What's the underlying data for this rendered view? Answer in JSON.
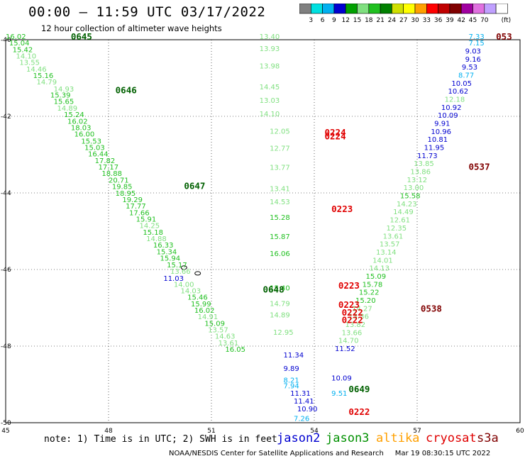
{
  "header": {
    "title": "00:00 – 11:59 UTC 03/17/2022",
    "subtitle": "12 hour collection of altimeter wave heights"
  },
  "legend": {
    "unit": "(ft)",
    "colors": [
      "#808080",
      "#00e0e0",
      "#00b0f0",
      "#0000d0",
      "#00a000",
      "#80e080",
      "#20c020",
      "#008000",
      "#d0e000",
      "#ffff00",
      "#ffa000",
      "#ff0000",
      "#c00000",
      "#800000",
      "#a000a0",
      "#e070e0",
      "#c0a0ff",
      "#ffffff"
    ],
    "ticks": [
      "3",
      "6",
      "9",
      "12",
      "15",
      "18",
      "21",
      "24",
      "27",
      "30",
      "33",
      "36",
      "39",
      "42",
      "45",
      "70"
    ]
  },
  "axes": {
    "x_labels": [
      "45",
      "48",
      "51",
      "54",
      "57",
      "60"
    ],
    "y_labels": [
      "-40",
      "-42",
      "-44",
      "-46",
      "-48",
      "-50"
    ]
  },
  "footer": {
    "note": "note:  1) Time is in UTC; 2) SWH is in feet",
    "credit": "NOAA/NESDIS Center for Satellite Applications and Research     Mar 19 08:30:15 UTC 2022",
    "satellites": [
      {
        "name": "jason2",
        "color": "#0000d0"
      },
      {
        "name": "jason3",
        "color": "#009000"
      },
      {
        "name": "altika",
        "color": "#ffa000"
      },
      {
        "name": "cryosat",
        "color": "#e00000"
      },
      {
        "name": "s3a",
        "color": "#800000"
      }
    ]
  },
  "map_data": {
    "type": "altimeter-track-map",
    "xlim": [
      45,
      60
    ],
    "ylim": [
      -50,
      -40
    ],
    "tracks": [
      {
        "label": "0645",
        "color": "#006000",
        "lon": 46.9,
        "lat": -40.0
      },
      {
        "label": "0646",
        "color": "#006000",
        "lon": 48.2,
        "lat": -41.4
      },
      {
        "label": "0647",
        "color": "#006000",
        "lon": 50.2,
        "lat": -43.9
      },
      {
        "label": "0648",
        "color": "#006000",
        "lon": 52.5,
        "lat": -46.6
      },
      {
        "label": "0649",
        "color": "#006000",
        "lon": 55.0,
        "lat": -49.2
      },
      {
        "label": "0224",
        "color": "#e00000",
        "lon": 54.3,
        "lat": -42.5
      },
      {
        "label": "0224",
        "color": "#e00000",
        "lon": 54.3,
        "lat": -42.6
      },
      {
        "label": "0223",
        "color": "#e00000",
        "lon": 54.5,
        "lat": -44.5
      },
      {
        "label": "0223",
        "color": "#e00000",
        "lon": 54.7,
        "lat": -46.5
      },
      {
        "label": "0223",
        "color": "#e00000",
        "lon": 54.7,
        "lat": -47.0
      },
      {
        "label": "0222",
        "color": "#e00000",
        "lon": 54.8,
        "lat": -47.2
      },
      {
        "label": "0222",
        "color": "#e00000",
        "lon": 54.8,
        "lat": -47.4
      },
      {
        "label": "0222",
        "color": "#e00000",
        "lon": 55.0,
        "lat": -49.8
      },
      {
        "label": "053",
        "color": "#800000",
        "lon": 59.3,
        "lat": -40.0
      },
      {
        "label": "0537",
        "color": "#800000",
        "lon": 58.5,
        "lat": -43.4
      },
      {
        "label": "0538",
        "color": "#800000",
        "lon": 57.1,
        "lat": -47.1
      }
    ],
    "values": [
      {
        "t": "16.02",
        "c": "#20c020",
        "lon": 45.0,
        "lat": -39.98
      },
      {
        "t": "15.04",
        "c": "#20c020",
        "lon": 45.1,
        "lat": -40.15
      },
      {
        "t": "15.42",
        "c": "#20c020",
        "lon": 45.2,
        "lat": -40.32
      },
      {
        "t": "14.10",
        "c": "#80e080",
        "lon": 45.3,
        "lat": -40.49
      },
      {
        "t": "13.55",
        "c": "#80e080",
        "lon": 45.4,
        "lat": -40.66
      },
      {
        "t": "14.46",
        "c": "#80e080",
        "lon": 45.6,
        "lat": -40.83
      },
      {
        "t": "15.16",
        "c": "#20c020",
        "lon": 45.8,
        "lat": -41.0
      },
      {
        "t": "14.79",
        "c": "#80e080",
        "lon": 45.9,
        "lat": -41.17
      },
      {
        "t": "14.93",
        "c": "#80e080",
        "lon": 46.4,
        "lat": -41.35
      },
      {
        "t": "15.39",
        "c": "#20c020",
        "lon": 46.3,
        "lat": -41.51
      },
      {
        "t": "15.65",
        "c": "#20c020",
        "lon": 46.4,
        "lat": -41.68
      },
      {
        "t": "14.89",
        "c": "#80e080",
        "lon": 46.5,
        "lat": -41.85
      },
      {
        "t": "15.24",
        "c": "#20c020",
        "lon": 46.7,
        "lat": -42.02
      },
      {
        "t": "16.02",
        "c": "#20c020",
        "lon": 46.8,
        "lat": -42.19
      },
      {
        "t": "18.03",
        "c": "#20c020",
        "lon": 46.9,
        "lat": -42.36
      },
      {
        "t": "16.00",
        "c": "#20c020",
        "lon": 47.0,
        "lat": -42.53
      },
      {
        "t": "15.53",
        "c": "#20c020",
        "lon": 47.2,
        "lat": -42.71
      },
      {
        "t": "15.03",
        "c": "#20c020",
        "lon": 47.3,
        "lat": -42.88
      },
      {
        "t": "16.44",
        "c": "#20c020",
        "lon": 47.4,
        "lat": -43.05
      },
      {
        "t": "17.82",
        "c": "#20c020",
        "lon": 47.6,
        "lat": -43.22
      },
      {
        "t": "17.17",
        "c": "#20c020",
        "lon": 47.7,
        "lat": -43.39
      },
      {
        "t": "18.88",
        "c": "#20c020",
        "lon": 47.8,
        "lat": -43.56
      },
      {
        "t": "20.71",
        "c": "#20c020",
        "lon": 48.0,
        "lat": -43.73
      },
      {
        "t": "19.85",
        "c": "#20c020",
        "lon": 48.1,
        "lat": -43.9
      },
      {
        "t": "18.95",
        "c": "#20c020",
        "lon": 48.2,
        "lat": -44.07
      },
      {
        "t": "19.29",
        "c": "#20c020",
        "lon": 48.4,
        "lat": -44.24
      },
      {
        "t": "17.77",
        "c": "#20c020",
        "lon": 48.5,
        "lat": -44.41
      },
      {
        "t": "17.66",
        "c": "#20c020",
        "lon": 48.6,
        "lat": -44.58
      },
      {
        "t": "15.91",
        "c": "#20c020",
        "lon": 48.8,
        "lat": -44.75
      },
      {
        "t": "14.25",
        "c": "#80e080",
        "lon": 48.9,
        "lat": -44.92
      },
      {
        "t": "15.18",
        "c": "#20c020",
        "lon": 49.0,
        "lat": -45.09
      },
      {
        "t": "14.88",
        "c": "#80e080",
        "lon": 49.1,
        "lat": -45.26
      },
      {
        "t": "16.33",
        "c": "#20c020",
        "lon": 49.3,
        "lat": -45.43
      },
      {
        "t": "15.34",
        "c": "#20c020",
        "lon": 49.4,
        "lat": -45.6
      },
      {
        "t": "15.94",
        "c": "#20c020",
        "lon": 49.5,
        "lat": -45.77
      },
      {
        "t": "15.17",
        "c": "#20c020",
        "lon": 49.7,
        "lat": -45.94
      },
      {
        "t": "13.66",
        "c": "#80e080",
        "lon": 49.8,
        "lat": -46.11
      },
      {
        "t": "11.03",
        "c": "#0000d0",
        "lon": 49.6,
        "lat": -46.3
      },
      {
        "t": "14.00",
        "c": "#80e080",
        "lon": 49.9,
        "lat": -46.45
      },
      {
        "t": "14.03",
        "c": "#80e080",
        "lon": 50.1,
        "lat": -46.62
      },
      {
        "t": "15.46",
        "c": "#20c020",
        "lon": 50.3,
        "lat": -46.79
      },
      {
        "t": "15.99",
        "c": "#20c020",
        "lon": 50.4,
        "lat": -46.96
      },
      {
        "t": "16.02",
        "c": "#20c020",
        "lon": 50.5,
        "lat": -47.13
      },
      {
        "t": "14.91",
        "c": "#80e080",
        "lon": 50.6,
        "lat": -47.3
      },
      {
        "t": "15.09",
        "c": "#20c020",
        "lon": 50.8,
        "lat": -47.47
      },
      {
        "t": "13.57",
        "c": "#80e080",
        "lon": 50.9,
        "lat": -47.64
      },
      {
        "t": "14.63",
        "c": "#80e080",
        "lon": 51.1,
        "lat": -47.81
      },
      {
        "t": "13.61",
        "c": "#80e080",
        "lon": 51.2,
        "lat": -47.98
      },
      {
        "t": "16.05",
        "c": "#20c020",
        "lon": 51.4,
        "lat": -48.15
      },
      {
        "t": "13.40",
        "c": "#80e080",
        "lon": 52.4,
        "lat": -39.98
      },
      {
        "t": "13.93",
        "c": "#80e080",
        "lon": 52.4,
        "lat": -40.3
      },
      {
        "t": "13.98",
        "c": "#80e080",
        "lon": 52.4,
        "lat": -40.75
      },
      {
        "t": "14.45",
        "c": "#80e080",
        "lon": 52.4,
        "lat": -41.3
      },
      {
        "t": "13.03",
        "c": "#80e080",
        "lon": 52.4,
        "lat": -41.65
      },
      {
        "t": "14.10",
        "c": "#80e080",
        "lon": 52.4,
        "lat": -42.0
      },
      {
        "t": "12.05",
        "c": "#80e080",
        "lon": 52.7,
        "lat": -42.45
      },
      {
        "t": "12.77",
        "c": "#80e080",
        "lon": 52.7,
        "lat": -42.9
      },
      {
        "t": "13.77",
        "c": "#80e080",
        "lon": 52.7,
        "lat": -43.4
      },
      {
        "t": "13.41",
        "c": "#80e080",
        "lon": 52.7,
        "lat": -43.95
      },
      {
        "t": "14.53",
        "c": "#80e080",
        "lon": 52.7,
        "lat": -44.3
      },
      {
        "t": "15.28",
        "c": "#20c020",
        "lon": 52.7,
        "lat": -44.7
      },
      {
        "t": "15.87",
        "c": "#20c020",
        "lon": 52.7,
        "lat": -45.2
      },
      {
        "t": "16.06",
        "c": "#20c020",
        "lon": 52.7,
        "lat": -45.65
      },
      {
        "t": "15.40",
        "c": "#20c020",
        "lon": 52.7,
        "lat": -46.55
      },
      {
        "t": "14.79",
        "c": "#80e080",
        "lon": 52.7,
        "lat": -46.95
      },
      {
        "t": "14.89",
        "c": "#80e080",
        "lon": 52.7,
        "lat": -47.25
      },
      {
        "t": "12.95",
        "c": "#80e080",
        "lon": 52.8,
        "lat": -47.7
      },
      {
        "t": "11.34",
        "c": "#0000d0",
        "lon": 53.1,
        "lat": -48.3
      },
      {
        "t": "9.89",
        "c": "#0000d0",
        "lon": 53.1,
        "lat": -48.65
      },
      {
        "t": "8.21",
        "c": "#00b0f0",
        "lon": 53.1,
        "lat": -48.95
      },
      {
        "t": "7.94",
        "c": "#00b0f0",
        "lon": 53.1,
        "lat": -49.1
      },
      {
        "t": "11.31",
        "c": "#0000d0",
        "lon": 53.3,
        "lat": -49.3
      },
      {
        "t": "11.41",
        "c": "#0000d0",
        "lon": 53.4,
        "lat": -49.5
      },
      {
        "t": "10.90",
        "c": "#0000d0",
        "lon": 53.5,
        "lat": -49.7
      },
      {
        "t": "7.26",
        "c": "#00b0f0",
        "lon": 53.4,
        "lat": -49.95
      },
      {
        "t": "7.33",
        "c": "#00b0f0",
        "lon": 58.5,
        "lat": -39.98
      },
      {
        "t": "7.15",
        "c": "#00b0f0",
        "lon": 58.5,
        "lat": -40.15
      },
      {
        "t": "9.03",
        "c": "#0000d0",
        "lon": 58.4,
        "lat": -40.36
      },
      {
        "t": "9.16",
        "c": "#0000d0",
        "lon": 58.4,
        "lat": -40.57
      },
      {
        "t": "9.53",
        "c": "#0000d0",
        "lon": 58.3,
        "lat": -40.78
      },
      {
        "t": "8.77",
        "c": "#00b0f0",
        "lon": 58.2,
        "lat": -40.99
      },
      {
        "t": "10.05",
        "c": "#0000d0",
        "lon": 58.0,
        "lat": -41.2
      },
      {
        "t": "10.62",
        "c": "#0000d0",
        "lon": 57.9,
        "lat": -41.41
      },
      {
        "t": "12.18",
        "c": "#80e080",
        "lon": 57.8,
        "lat": -41.62
      },
      {
        "t": "10.92",
        "c": "#0000d0",
        "lon": 57.7,
        "lat": -41.83
      },
      {
        "t": "10.09",
        "c": "#0000d0",
        "lon": 57.6,
        "lat": -42.04
      },
      {
        "t": "9.91",
        "c": "#0000d0",
        "lon": 57.5,
        "lat": -42.25
      },
      {
        "t": "10.96",
        "c": "#0000d0",
        "lon": 57.4,
        "lat": -42.46
      },
      {
        "t": "10.81",
        "c": "#0000d0",
        "lon": 57.3,
        "lat": -42.67
      },
      {
        "t": "11.95",
        "c": "#0000d0",
        "lon": 57.2,
        "lat": -42.88
      },
      {
        "t": "11.73",
        "c": "#0000d0",
        "lon": 57.0,
        "lat": -43.09
      },
      {
        "t": "13.85",
        "c": "#80e080",
        "lon": 56.9,
        "lat": -43.3
      },
      {
        "t": "13.86",
        "c": "#80e080",
        "lon": 56.8,
        "lat": -43.51
      },
      {
        "t": "13.12",
        "c": "#80e080",
        "lon": 56.7,
        "lat": -43.72
      },
      {
        "t": "13.00",
        "c": "#80e080",
        "lon": 56.6,
        "lat": -43.93
      },
      {
        "t": "15.58",
        "c": "#20c020",
        "lon": 56.5,
        "lat": -44.14
      },
      {
        "t": "14.23",
        "c": "#80e080",
        "lon": 56.4,
        "lat": -44.35
      },
      {
        "t": "14.49",
        "c": "#80e080",
        "lon": 56.3,
        "lat": -44.56
      },
      {
        "t": "12.61",
        "c": "#80e080",
        "lon": 56.2,
        "lat": -44.77
      },
      {
        "t": "12.35",
        "c": "#80e080",
        "lon": 56.1,
        "lat": -44.98
      },
      {
        "t": "13.61",
        "c": "#80e080",
        "lon": 56.0,
        "lat": -45.19
      },
      {
        "t": "13.57",
        "c": "#80e080",
        "lon": 55.9,
        "lat": -45.4
      },
      {
        "t": "13.14",
        "c": "#80e080",
        "lon": 55.8,
        "lat": -45.61
      },
      {
        "t": "14.01",
        "c": "#80e080",
        "lon": 55.7,
        "lat": -45.82
      },
      {
        "t": "14.13",
        "c": "#80e080",
        "lon": 55.6,
        "lat": -46.03
      },
      {
        "t": "15.09",
        "c": "#20c020",
        "lon": 55.5,
        "lat": -46.24
      },
      {
        "t": "15.78",
        "c": "#20c020",
        "lon": 55.4,
        "lat": -46.45
      },
      {
        "t": "15.22",
        "c": "#20c020",
        "lon": 55.3,
        "lat": -46.66
      },
      {
        "t": "15.20",
        "c": "#20c020",
        "lon": 55.2,
        "lat": -46.87
      },
      {
        "t": "14.27",
        "c": "#80e080",
        "lon": 55.1,
        "lat": -47.08
      },
      {
        "t": "13.36",
        "c": "#80e080",
        "lon": 55.0,
        "lat": -47.29
      },
      {
        "t": "13.82",
        "c": "#80e080",
        "lon": 54.9,
        "lat": -47.5
      },
      {
        "t": "13.66",
        "c": "#80e080",
        "lon": 54.8,
        "lat": -47.71
      },
      {
        "t": "14.70",
        "c": "#80e080",
        "lon": 54.7,
        "lat": -47.92
      },
      {
        "t": "11.52",
        "c": "#0000d0",
        "lon": 54.6,
        "lat": -48.13
      },
      {
        "t": "10.09",
        "c": "#0000d0",
        "lon": 54.5,
        "lat": -48.9
      },
      {
        "t": "9.51",
        "c": "#00b0f0",
        "lon": 54.5,
        "lat": -49.3
      }
    ],
    "island_markers": [
      {
        "lon": 50.6,
        "lat": -46.1
      },
      {
        "lon": 50.2,
        "lat": -45.95
      }
    ]
  }
}
